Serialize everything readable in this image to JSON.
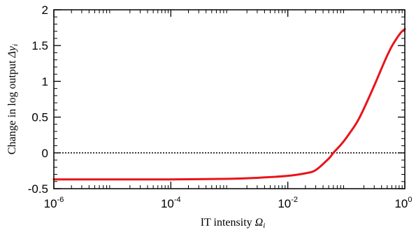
{
  "chart_data": {
    "type": "line",
    "title": "",
    "xlabel": {
      "text": "IT intensity",
      "symbol": "Ω",
      "subscript": "i"
    },
    "ylabel": {
      "text": "Change in log output",
      "symbol": "Δy",
      "subscript": "i"
    },
    "x_scale": "log",
    "xlim": [
      1e-06,
      1
    ],
    "ylim": [
      -0.5,
      2
    ],
    "x_ticks": [
      {
        "base": "10",
        "exp": "-6"
      },
      {
        "base": "10",
        "exp": "-4"
      },
      {
        "base": "10",
        "exp": "-2"
      },
      {
        "base": "10",
        "exp": "0"
      }
    ],
    "y_ticks": [
      "-0.5",
      "0",
      "0.5",
      "1",
      "1.5",
      "2"
    ],
    "reference_line": {
      "y": 0,
      "style": "dotted"
    },
    "series": [
      {
        "color": "#e8141b",
        "x": [
          1e-06,
          1e-05,
          0.0001,
          0.001,
          0.003,
          0.01,
          0.02,
          0.03,
          0.05,
          0.06,
          0.08,
          0.1,
          0.15,
          0.2,
          0.3,
          0.4,
          0.5,
          0.6,
          0.7,
          0.8,
          0.9,
          1.0
        ],
        "y": [
          -0.37,
          -0.37,
          -0.37,
          -0.362,
          -0.348,
          -0.32,
          -0.285,
          -0.24,
          -0.08,
          0.0,
          0.11,
          0.21,
          0.42,
          0.62,
          0.94,
          1.18,
          1.36,
          1.49,
          1.58,
          1.65,
          1.7,
          1.73
        ]
      }
    ]
  }
}
